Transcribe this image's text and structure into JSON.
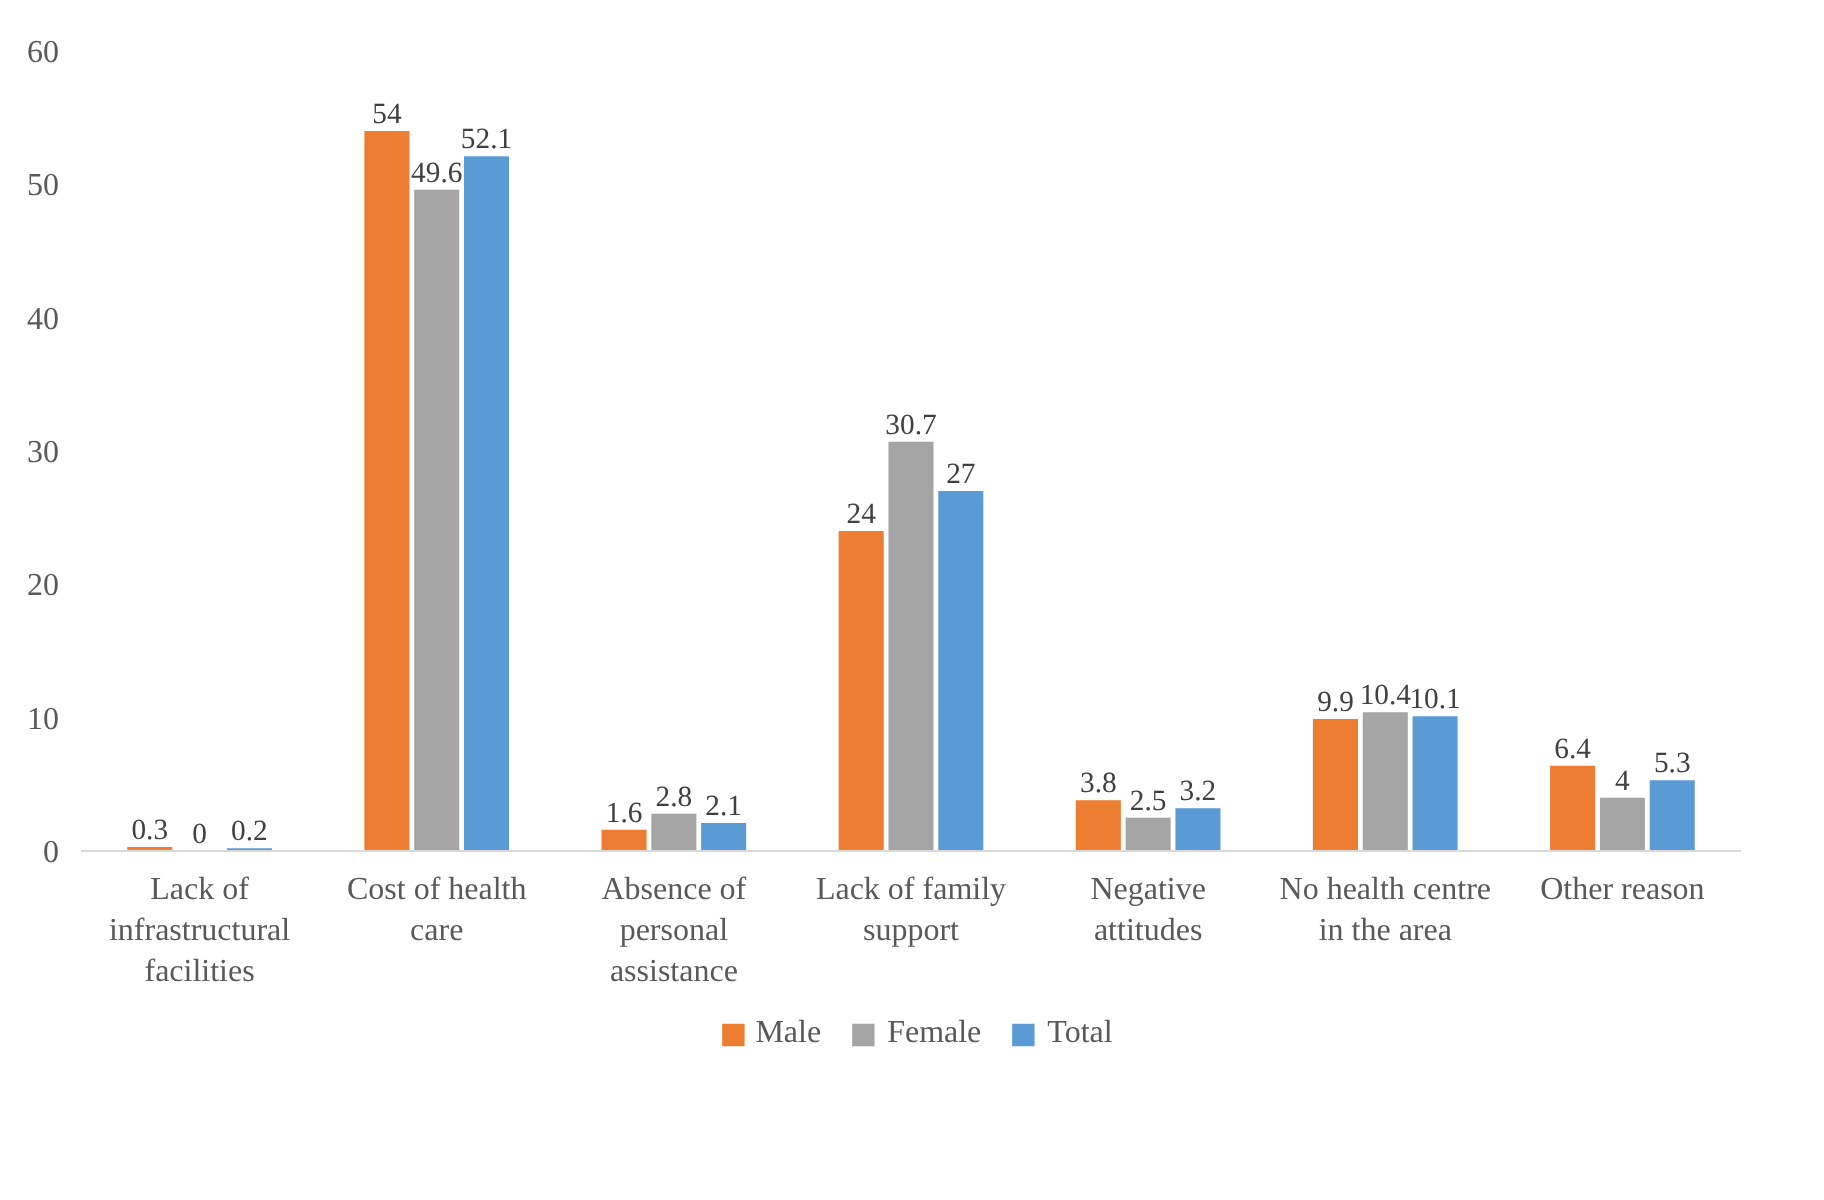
{
  "chart_data": {
    "type": "bar",
    "categories": [
      "Lack of infrastructural facilities",
      "Cost of health care",
      "Absence of personal assistance",
      "Lack of family support",
      "Negative attitudes",
      "No health centre in the area",
      "Other reason"
    ],
    "series": [
      {
        "name": "Male",
        "color": "#ed7d31",
        "values": [
          0.3,
          54,
          1.6,
          24,
          3.8,
          9.9,
          6.4
        ]
      },
      {
        "name": "Female",
        "color": "#a5a5a5",
        "values": [
          0,
          49.6,
          2.8,
          30.7,
          2.5,
          10.4,
          4
        ]
      },
      {
        "name": "Total",
        "color": "#5b9bd5",
        "values": [
          0.2,
          52.1,
          2.1,
          27,
          3.2,
          10.1,
          5.3
        ]
      }
    ],
    "ylim": [
      0,
      60
    ],
    "yticks": [
      0,
      10,
      20,
      30,
      40,
      50,
      60
    ],
    "grid": false,
    "legend": "bottom",
    "data_labels": true
  }
}
